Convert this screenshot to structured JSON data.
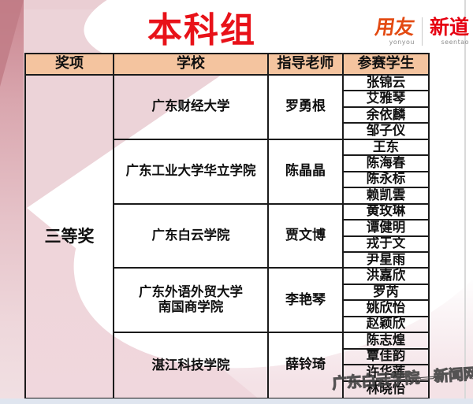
{
  "page": {
    "title": "本科组",
    "title_color": "#e81219"
  },
  "logo": {
    "brand1": "用友",
    "brand1_sub": "yonyou",
    "brand1_color": "#e34a12",
    "brand2": "新道",
    "brand2_sub": "seentao",
    "brand2_color": "#e60012"
  },
  "watermark": {
    "text": "广东白云学院—新闻网"
  },
  "table": {
    "header_bg": "#f4c49f",
    "headers": [
      "奖项",
      "学校",
      "指导老师",
      "参赛学生"
    ],
    "award": "三等奖",
    "groups": [
      {
        "school": "广东财经大学",
        "teacher": "罗勇根",
        "students": [
          "张锦云",
          "艾雅琴",
          "余依麟",
          "邹子仪"
        ]
      },
      {
        "school": "广东工业大学华立学院",
        "teacher": "陈晶晶",
        "students": [
          "王东",
          "陈海春",
          "陈永标",
          "赖凯雲"
        ]
      },
      {
        "school": "广东白云学院",
        "teacher": "贾文博",
        "students": [
          "黄玫琳",
          "谭健明",
          "戎于文",
          "尹星雨"
        ]
      },
      {
        "school": "广东外语外贸大学\n南国商学院",
        "teacher": "李艳琴",
        "students": [
          "洪嘉欣",
          "罗芮",
          "姚欣怡",
          "赵颖欣"
        ]
      },
      {
        "school": "湛江科技学院",
        "teacher": "薛铃琦",
        "students": [
          "陈志煌",
          "覃佳韵",
          "许华莲",
          "林晓怡"
        ]
      }
    ]
  }
}
